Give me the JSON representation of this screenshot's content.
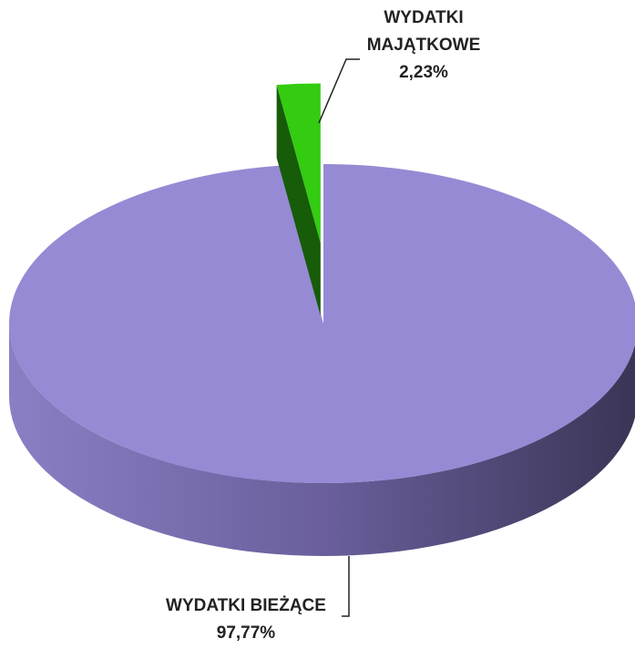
{
  "chart_data": {
    "type": "pie",
    "categories": [
      "WYDATKI BIEŻĄCE",
      "WYDATKI MAJĄTKOWE"
    ],
    "values": [
      97.77,
      2.23
    ],
    "value_labels": [
      "97,77%",
      "2,23%"
    ],
    "colors": [
      "#968ad4",
      "#33cc11"
    ]
  }
}
